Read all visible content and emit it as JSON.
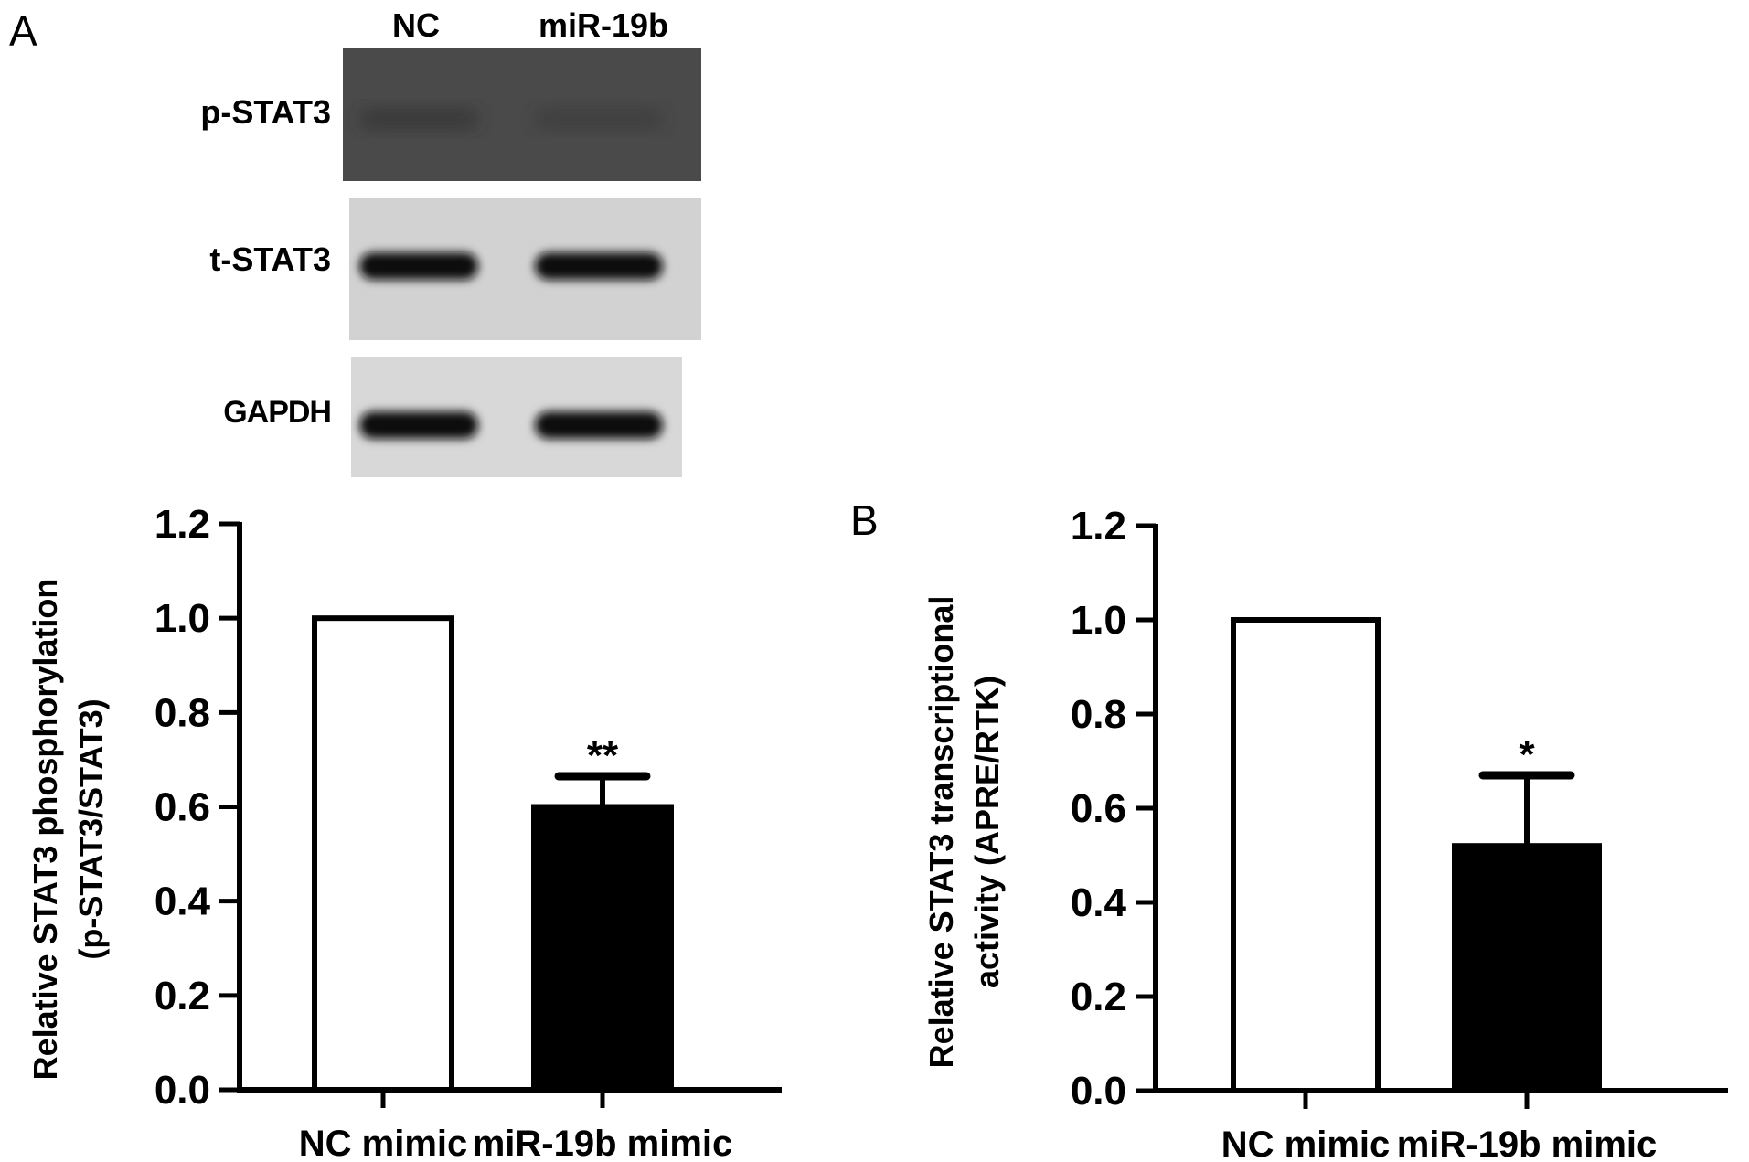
{
  "panel_a_label": "A",
  "panel_b_label": "B",
  "blot": {
    "lanes": [
      "NC",
      "miR-19b"
    ],
    "rows": [
      {
        "label": "p-STAT3",
        "background": "#4a4a4a",
        "band_color": "#2a2a2a",
        "band_strength": [
          0.55,
          0.35
        ]
      },
      {
        "label": "t-STAT3",
        "background": "#d2d2d2",
        "band_color": "#111111",
        "band_strength": [
          1.0,
          1.0
        ]
      },
      {
        "label": "GAPDH",
        "background": "#d8d8d8",
        "band_color": "#0a0a0a",
        "band_strength": [
          1.0,
          1.0
        ]
      }
    ]
  },
  "chart_data": [
    {
      "type": "bar",
      "panel": "A",
      "categories": [
        "NC mimic",
        "miR-19b mimic"
      ],
      "values": [
        1.0,
        0.6
      ],
      "error_bars": [
        0,
        0.065
      ],
      "bar_fill": [
        "#ffffff",
        "#000000"
      ],
      "significance": [
        "",
        "**"
      ],
      "ylabel_lines": [
        "Relative STAT3 phosphorylation",
        "(p-STAT3/STAT3)"
      ],
      "ylim": [
        0,
        1.2
      ],
      "yticks": [
        "0.0",
        "0.2",
        "0.4",
        "0.6",
        "0.8",
        "1.0",
        "1.2"
      ],
      "grid": false
    },
    {
      "type": "bar",
      "panel": "B",
      "categories": [
        "NC mimic",
        "miR-19b mimic"
      ],
      "values": [
        1.0,
        0.52
      ],
      "error_bars": [
        0,
        0.15
      ],
      "bar_fill": [
        "#ffffff",
        "#000000"
      ],
      "significance": [
        "",
        "*"
      ],
      "ylabel_lines": [
        "Relative STAT3 transcriptional",
        "activity (APRE/RTK)"
      ],
      "ylim": [
        0,
        1.2
      ],
      "yticks": [
        "0.0",
        "0.2",
        "0.4",
        "0.6",
        "0.8",
        "1.0",
        "1.2"
      ],
      "grid": false
    }
  ]
}
